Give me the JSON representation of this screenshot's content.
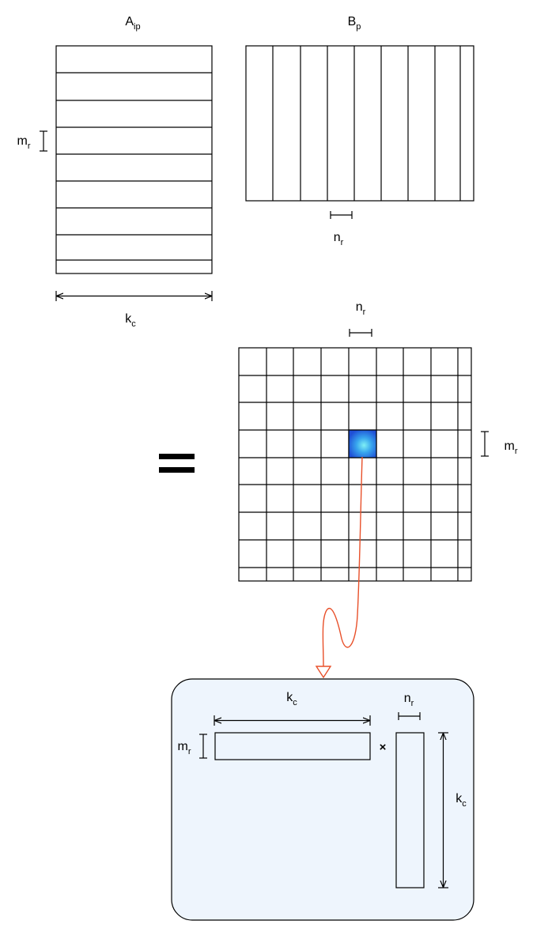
{
  "a_panel": {
    "title": {
      "base": "A",
      "sub": "ip"
    },
    "row_height_label": {
      "base": "m",
      "sub": "r"
    },
    "width_label": {
      "base": "k",
      "sub": "c"
    }
  },
  "b_panel": {
    "title": {
      "base": "B",
      "sub": "p"
    },
    "col_width_label": {
      "base": "n",
      "sub": "r"
    }
  },
  "c_panel": {
    "equals_symbol": "=",
    "col_width_label": {
      "base": "n",
      "sub": "r"
    },
    "row_height_label": {
      "base": "m",
      "sub": "r"
    },
    "highlight_color": "#2e7de8"
  },
  "micro_kernel": {
    "a_width_label": {
      "base": "k",
      "sub": "c"
    },
    "a_height_label": {
      "base": "m",
      "sub": "r"
    },
    "times_symbol": "×",
    "b_width_label": {
      "base": "n",
      "sub": "r"
    },
    "b_height_label": {
      "base": "k",
      "sub": "c"
    },
    "panel_color": "#eef5fd",
    "arrow_color": "#e8502a"
  }
}
